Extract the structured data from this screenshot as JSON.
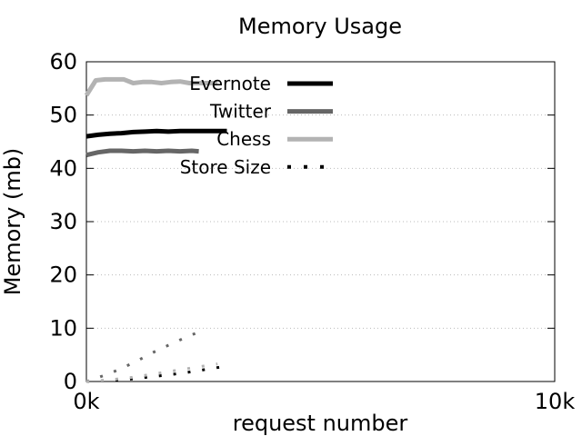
{
  "chart_data": {
    "type": "line",
    "title": "Memory Usage",
    "xlabel": "request number",
    "ylabel": "Memory (mb)",
    "xlim": [
      0,
      10000
    ],
    "ylim": [
      0,
      60
    ],
    "x_tick_labels": [
      "0k",
      "10k"
    ],
    "x_ticks": [
      0,
      10000
    ],
    "y_ticks": [
      0,
      10,
      20,
      30,
      40,
      50,
      60
    ],
    "grid": "horizontal dotted",
    "legend_position": "top-right",
    "series": [
      {
        "name": "Evernote",
        "color": "#000000",
        "style": "solid",
        "x": [
          0,
          250,
          500,
          750,
          1000,
          1250,
          1500,
          1750,
          2000,
          2250,
          2500,
          2750,
          3000
        ],
        "y": [
          46.0,
          46.3,
          46.5,
          46.6,
          46.8,
          46.9,
          47.0,
          46.9,
          47.0,
          47.0,
          47.0,
          47.0,
          47.0
        ]
      },
      {
        "name": "Twitter",
        "color": "#666666",
        "style": "solid",
        "x": [
          0,
          250,
          500,
          750,
          1000,
          1250,
          1500,
          1750,
          2000,
          2250,
          2400
        ],
        "y": [
          42.5,
          43.0,
          43.3,
          43.3,
          43.2,
          43.3,
          43.2,
          43.3,
          43.2,
          43.3,
          43.2
        ]
      },
      {
        "name": "Chess",
        "color": "#b3b3b3",
        "style": "solid",
        "x": [
          0,
          200,
          400,
          600,
          800,
          1000,
          1200,
          1400,
          1600,
          1800,
          2000,
          2200,
          2500,
          2800
        ],
        "y": [
          53.7,
          56.5,
          56.7,
          56.7,
          56.7,
          56.0,
          56.2,
          56.2,
          56.0,
          56.2,
          56.3,
          56.0,
          56.0,
          56.0
        ]
      },
      {
        "name": "Store Size",
        "color": "#000000",
        "style": "dotted",
        "x": [
          0,
          500,
          1000,
          1500,
          2000,
          2500,
          3000
        ],
        "y": [
          0.0,
          0.2,
          0.5,
          1.0,
          1.5,
          2.2,
          2.9
        ]
      },
      {
        "name": "",
        "color": "#666666",
        "style": "dotted",
        "x": [
          0,
          500,
          1000,
          1500,
          2000,
          2400
        ],
        "y": [
          0.0,
          1.5,
          3.5,
          5.8,
          7.8,
          9.3
        ]
      },
      {
        "name": "",
        "color": "#b3b3b3",
        "style": "dotted",
        "x": [
          0,
          500,
          1000,
          1500,
          2000,
          2500,
          2800
        ],
        "y": [
          0.0,
          0.3,
          0.8,
          1.5,
          2.2,
          2.9,
          3.3
        ]
      }
    ]
  }
}
